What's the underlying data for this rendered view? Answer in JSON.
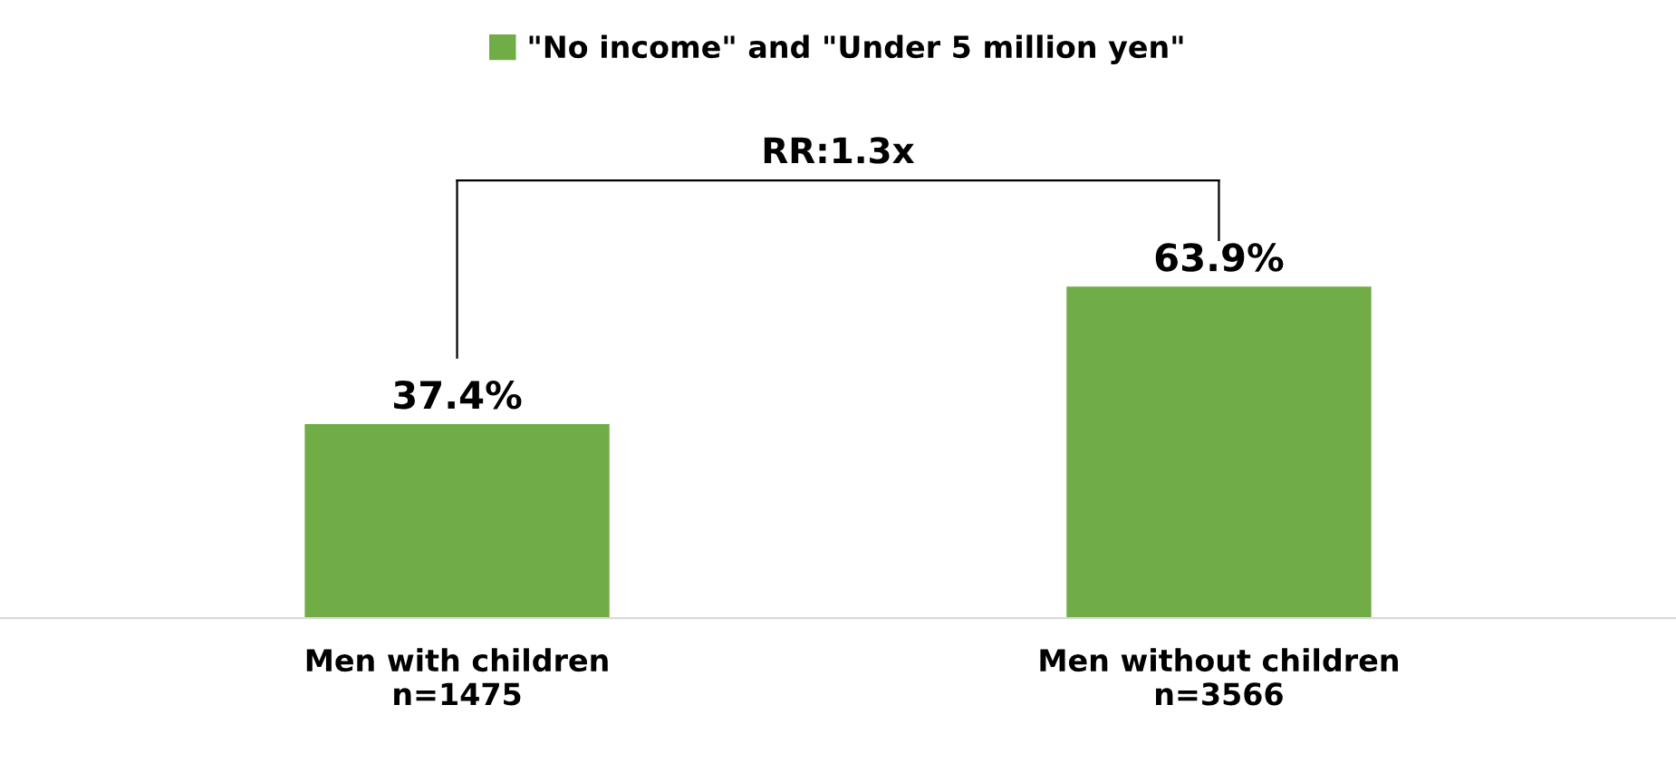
{
  "chart_data": {
    "type": "bar",
    "categories": [
      "Men with children\nn=1475",
      "Men without children\nn=3566"
    ],
    "series": [
      {
        "name": "\"No income\" and \"Under 5 million yen\"",
        "color": "#70ad47",
        "values": [
          37.4,
          63.9
        ],
        "value_labels": [
          "37.4%",
          "63.9%"
        ]
      }
    ],
    "annotations": [
      "RR:1.3x"
    ],
    "legend": "top",
    "grid": false
  }
}
